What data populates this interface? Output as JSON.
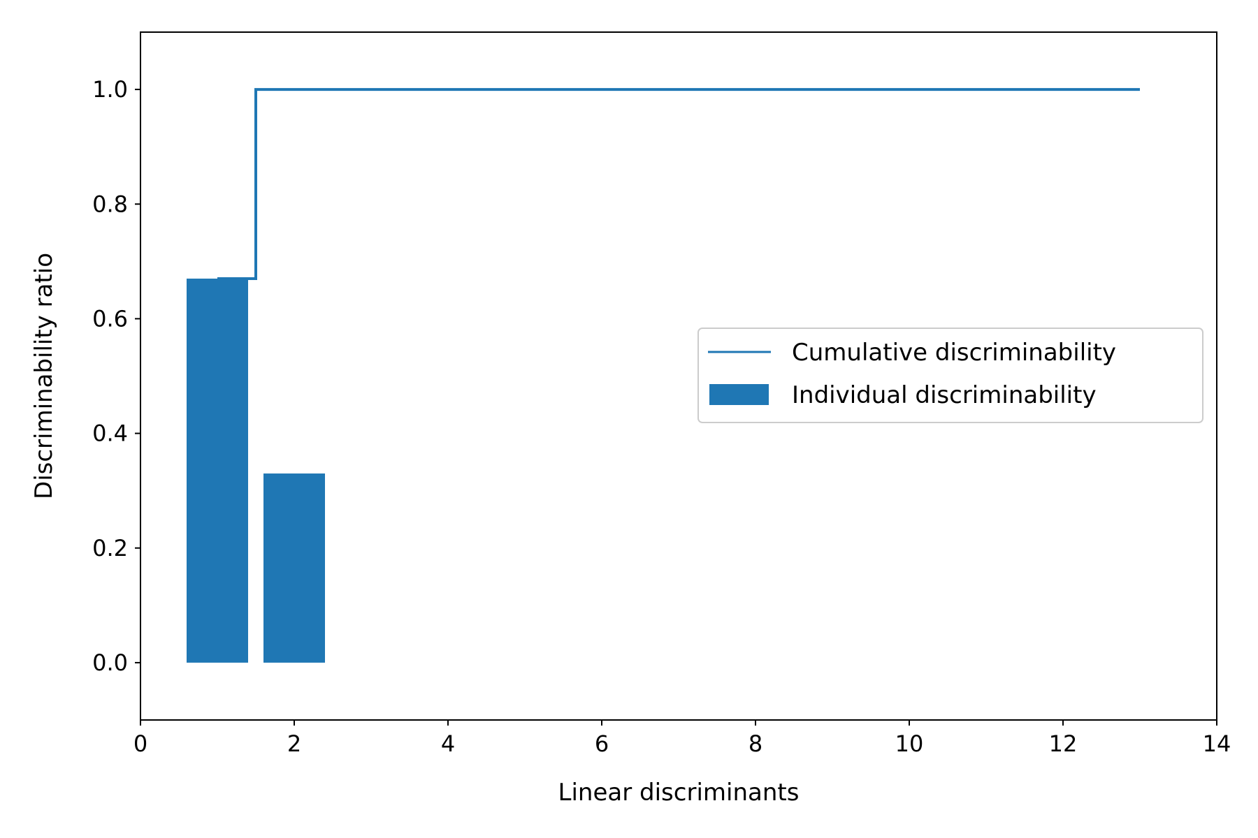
{
  "chart_data": {
    "type": "bar",
    "title": "",
    "xlabel": "Linear discriminants",
    "ylabel": "Discriminability ratio",
    "xlim": [
      0,
      14
    ],
    "ylim": [
      -0.1,
      1.1
    ],
    "xticks": [
      0,
      2,
      4,
      6,
      8,
      10,
      12,
      14
    ],
    "yticks": [
      0.0,
      0.2,
      0.4,
      0.6,
      0.8,
      1.0
    ],
    "xtick_labels": [
      "0",
      "2",
      "4",
      "6",
      "8",
      "10",
      "12",
      "14"
    ],
    "ytick_labels": [
      "0.0",
      "0.2",
      "0.4",
      "0.6",
      "0.8",
      "1.0"
    ],
    "grid": false,
    "legend_position": "center-right",
    "series": [
      {
        "name": "Cumulative discriminability",
        "kind": "step",
        "color": "#1f77b4",
        "x": [
          1,
          2,
          3,
          4,
          5,
          6,
          7,
          8,
          9,
          10,
          11,
          12,
          13
        ],
        "values": [
          0.67,
          1.0,
          1.0,
          1.0,
          1.0,
          1.0,
          1.0,
          1.0,
          1.0,
          1.0,
          1.0,
          1.0,
          1.0
        ]
      },
      {
        "name": "Individual discriminability",
        "kind": "bar",
        "color": "#1f77b4",
        "x": [
          1,
          2,
          3,
          4,
          5,
          6,
          7,
          8,
          9,
          10,
          11,
          12,
          13
        ],
        "values": [
          0.67,
          0.33,
          0,
          0,
          0,
          0,
          0,
          0,
          0,
          0,
          0,
          0,
          0
        ]
      }
    ]
  }
}
